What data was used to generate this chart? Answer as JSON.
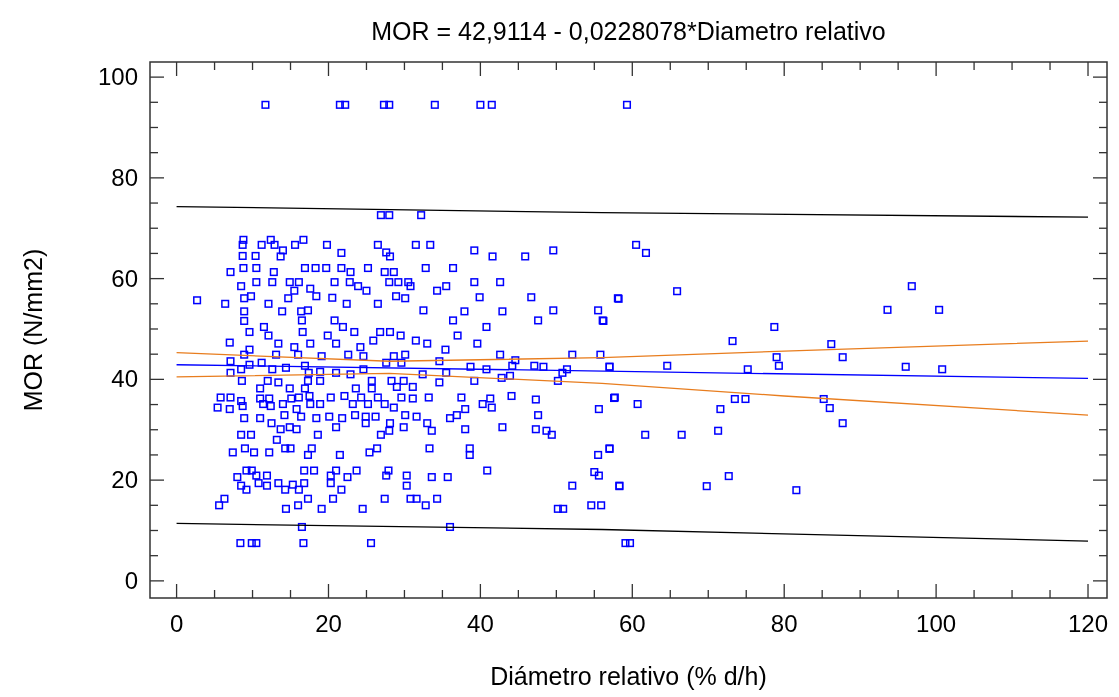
{
  "chart_data": {
    "type": "scatter",
    "title": "MOR = 42,9114 - 0,0228078*Diametro relativo",
    "xlabel": "Diámetro relativo (% d/h)",
    "ylabel": "MOR (N/mm2)",
    "xlim": [
      -3.5,
      122.5
    ],
    "ylim": [
      -3.4,
      103
    ],
    "xticks": [
      0,
      {
        "value": 5,
        "label": null
      },
      {
        "value": 10,
        "label": null
      },
      {
        "value": 15,
        "label": null
      },
      20,
      {
        "value": 25,
        "label": null
      },
      {
        "value": 30,
        "label": null
      },
      {
        "value": 35,
        "label": null
      },
      40,
      {
        "value": 45,
        "label": null
      },
      {
        "value": 50,
        "label": null
      },
      {
        "value": 55,
        "label": null
      },
      60,
      {
        "value": 65,
        "label": null
      },
      {
        "value": 70,
        "label": null
      },
      {
        "value": 75,
        "label": null
      },
      80,
      {
        "value": 85,
        "label": null
      },
      {
        "value": 90,
        "label": null
      },
      {
        "value": 95,
        "label": null
      },
      100,
      {
        "value": 105,
        "label": null
      },
      {
        "value": 110,
        "label": null
      },
      {
        "value": 115,
        "label": null
      },
      120
    ],
    "yticks": [
      0,
      {
        "value": 5,
        "label": null
      },
      {
        "value": 10,
        "label": null
      },
      {
        "value": 15,
        "label": null
      },
      20,
      {
        "value": 25,
        "label": null
      },
      {
        "value": 30,
        "label": null
      },
      {
        "value": 35,
        "label": null
      },
      40,
      {
        "value": 45,
        "label": null
      },
      {
        "value": 50,
        "label": null
      },
      {
        "value": 55,
        "label": null
      },
      60,
      {
        "value": 65,
        "label": null
      },
      {
        "value": 70,
        "label": null
      },
      {
        "value": 75,
        "label": null
      },
      80,
      {
        "value": 85,
        "label": null
      },
      {
        "value": 90,
        "label": null
      },
      {
        "value": 95,
        "label": null
      },
      100
    ],
    "grid": false,
    "series": [
      {
        "marker": "square",
        "color": "#0000ff",
        "x": [
          11.7,
          21.5,
          22.2,
          27.3,
          28,
          34,
          40,
          41.5,
          59.3,
          26.9,
          28,
          32.2,
          8.4,
          9.9,
          10.5,
          16.7,
          25.6,
          59.1,
          59.7,
          16.5,
          36,
          60.5,
          61.8,
          58.2,
          65.9,
          56.2,
          78.7,
          96.8,
          93.6,
          100.4,
          73.2,
          86.2,
          79,
          87.7,
          57,
          64.6,
          79.3,
          96,
          100.8,
          75.2,
          57.6,
          60.7,
          73.5,
          74.9,
          85.2,
          86,
          71.6,
          87.7,
          61.7,
          66.5,
          71.3,
          57,
          72.7,
          69.8,
          81.6,
          58.3,
          2.7,
          6.4,
          7.1,
          8.8,
          8.7,
          8.7,
          8.8,
          8.5,
          8.9,
          8.9,
          8.9,
          12.4,
          11.2,
          12.9,
          16.7,
          15.6,
          14.0,
          10.4,
          13.7,
          10.5,
          12.8,
          10.5,
          12.6,
          14.9,
          16.1,
          16.9,
          18.3,
          19.8,
          21.7,
          19.7,
          21.7,
          22.9,
          20.8,
          22.8,
          17.6,
          18.4,
          15.5,
          14.7,
          9.8,
          12.1,
          13.9,
          16.4,
          17.3,
          20.5,
          22.4,
          23.9,
          25.0,
          25.2,
          26.5,
          27.6,
          28.1,
          27.4,
          28.6,
          28.0,
          29.2,
          30.5,
          30.8,
          28.9,
          30.1,
          31.5,
          33.4,
          32.8,
          36.4,
          34.3,
          35.5,
          39.2,
          41.6,
          45.9,
          49.6,
          39.2,
          42.6,
          39.9,
          46.7,
          32.5,
          37.9,
          42.9,
          49.6,
          36.4,
          47.6,
          55.5,
          56.1,
          58.1,
          26.5,
          20.8,
          16.5,
          11.5,
          9.6,
          12.1,
          16.6,
          19.9,
          21.9,
          23.4,
          26.8,
          28.1,
          29.5,
          31.5,
          37.0,
          39.6,
          40.8,
          7.0,
          9.6,
          13.4,
          15.5,
          17.6,
          21.0,
          24.2,
          25.9,
          33.0,
          35.4,
          8.9,
          13.1,
          16.0,
          19.1,
          22.6,
          24.6,
          28.6,
          30.1,
          42.6,
          52.1,
          55.8,
          7.1,
          7.1,
          8.5,
          9.6,
          11.2,
          12.6,
          14.4,
          16.9,
          17.4,
          18.9,
          21.0,
          22.9,
          24.6,
          27.6,
          29.6,
          32.4,
          34.6,
          35.5,
          38.7,
          40.8,
          44.2,
          47.1,
          48.3,
          51.4,
          57.0,
          44.6,
          50.8,
          42.8,
          43.9,
          8.6,
          12.0,
          13.4,
          17.3,
          18.9,
          25.7,
          28.3,
          29.9,
          34.6,
          39.2,
          50.2,
          11.0,
          14.9,
          16.9,
          23.6,
          25.7,
          29.0,
          31.1,
          5.8,
          7.1,
          5.4,
          7.0,
          8.5,
          11.0,
          12.2,
          15.1,
          16.1,
          17.5,
          20.3,
          22.1,
          24.3,
          26.5,
          29.6,
          31.1,
          33.2,
          37.5,
          41.3,
          44.1,
          47.3,
          57.7,
          8.7,
          11.4,
          12.4,
          14.0,
          15.8,
          17.6,
          18.9,
          23.2,
          25.2,
          27.4,
          28.6,
          38.0,
          40.3,
          41.5,
          55.6,
          8.9,
          11.0,
          12.5,
          14.2,
          16.4,
          18.4,
          20.1,
          21.8,
          23.5,
          24.9,
          26.2,
          28.1,
          30.1,
          31.6,
          33.0,
          36.0,
          36.9,
          47.6,
          13.7,
          14.9,
          15.8,
          18.6,
          21.0,
          24.9,
          26.9,
          28.0,
          29.9,
          33.6,
          38.0,
          42.9,
          47.3,
          48.7,
          49.4,
          8.5,
          9.8,
          13.2,
          7.4,
          9.0,
          10.2,
          12.2,
          14.3,
          15.0,
          17.3,
          17.8,
          21.5,
          25.4,
          26.4,
          33.3,
          38.6,
          38.6,
          55.5,
          57.0,
          8.0,
          9.2,
          9.9,
          8.5,
          9.2,
          10.5,
          11.9,
          10.8,
          11.9,
          13.4,
          14.3,
          15.3,
          16.1,
          16.8,
          16.8,
          18.1,
          20.3,
          21.0,
          20.3,
          21.7,
          22.5,
          23.7,
          27.6,
          27.9,
          30.3,
          30.3,
          33.6,
          35.7,
          40.9,
          52.1,
          55.0,
          55.6,
          58.3,
          6.3,
          5.6,
          14.4,
          16.0,
          17.3,
          19.1,
          20.6,
          24.5,
          27.4,
          30.8,
          31.6,
          32.8,
          34.3,
          50.2,
          50.9,
          54.6,
          55.9
        ],
        "values": [
          94.5,
          94.5,
          94.5,
          94.5,
          94.5,
          94.5,
          94.5,
          94.5,
          94.5,
          72.6,
          72.6,
          72.6,
          7.5,
          7.5,
          7.5,
          7.5,
          7.5,
          7.5,
          7.5,
          10.7,
          10.7,
          66.7,
          65.1,
          56,
          57.5,
          51.6,
          50.4,
          58.5,
          53.8,
          53.8,
          47.6,
          47,
          44.4,
          44.4,
          42.5,
          42.7,
          42.7,
          42.5,
          42,
          42,
          36.3,
          35.1,
          36.1,
          36.1,
          36.1,
          34.3,
          34.1,
          31.3,
          29,
          29,
          29.8,
          26.2,
          20.8,
          18.8,
          18,
          18.8,
          55.7,
          55.0,
          61.3,
          67.7,
          66.7,
          64.5,
          62.1,
          58.5,
          56.1,
          53.5,
          51.6,
          67.7,
          66.7,
          66.7,
          67.7,
          66.7,
          65.6,
          64.5,
          64.4,
          62.1,
          61.3,
          59.3,
          59.3,
          59.3,
          59.3,
          62.1,
          62.1,
          66.7,
          65.1,
          62.1,
          62.1,
          61.3,
          59.3,
          59.3,
          58.0,
          56.5,
          57.6,
          56.1,
          56.5,
          55.0,
          53.5,
          53.5,
          53.7,
          56.2,
          55.0,
          58.5,
          57.6,
          62.1,
          66.7,
          65.2,
          64.4,
          61.3,
          61.3,
          59.3,
          59.3,
          59.3,
          58.5,
          56.5,
          56.1,
          66.7,
          66.7,
          62.1,
          62.1,
          57.6,
          58.5,
          65.6,
          64.4,
          64.4,
          65.6,
          59.3,
          59.3,
          56.3,
          56.3,
          53.7,
          53.5,
          53.5,
          53.7,
          51.7,
          51.7,
          53.7,
          51.7,
          56.1,
          55.0,
          51.7,
          51.7,
          50.4,
          49.4,
          48.7,
          49.4,
          48.7,
          50.4,
          49.4,
          49.4,
          49.4,
          48.7,
          47.7,
          48.7,
          47.1,
          50.4,
          47.3,
          45.9,
          47.1,
          46.4,
          47.1,
          47.1,
          46.4,
          47.7,
          47.1,
          45.9,
          44.9,
          44.9,
          44.9,
          44.6,
          44.9,
          44.6,
          44.6,
          44.9,
          44.9,
          44.9,
          44.9,
          43.6,
          41.3,
          42.0,
          42.9,
          43.3,
          42.0,
          42.3,
          42.7,
          41.3,
          41.5,
          41.3,
          41.0,
          42.0,
          43.3,
          43.3,
          41.0,
          43.6,
          41.3,
          42.5,
          42.0,
          42.7,
          42.7,
          42.5,
          42.0,
          42.5,
          43.8,
          41.3,
          40.3,
          40.7,
          39.7,
          39.7,
          39.4,
          39.7,
          39.7,
          39.7,
          39.7,
          39.7,
          39.4,
          39.7,
          39.7,
          38.2,
          38.2,
          38.2,
          38.2,
          38.2,
          38.5,
          38.5,
          36.4,
          36.4,
          34.4,
          34.1,
          35.7,
          36.2,
          36.2,
          36.2,
          36.4,
          36.7,
          36.4,
          36.7,
          36.4,
          36.4,
          36.4,
          36.2,
          36.4,
          36.4,
          36.2,
          36.7,
          36.0,
          36.4,
          34.7,
          35.1,
          34.7,
          35.1,
          34.1,
          35.1,
          35.1,
          35.1,
          35.1,
          35.1,
          34.4,
          34.1,
          35.1,
          34.4,
          34.1,
          32.3,
          32.3,
          31.3,
          32.9,
          32.6,
          32.3,
          32.6,
          32.3,
          32.9,
          32.6,
          32.6,
          31.3,
          32.9,
          32.6,
          31.3,
          32.3,
          32.9,
          32.9,
          30.1,
          30.5,
          30.1,
          29.0,
          30.5,
          31.3,
          29.0,
          29.8,
          30.5,
          29.8,
          30.1,
          30.5,
          30.1,
          29.8,
          29.0,
          29.0,
          29.0,
          28.0,
          25.5,
          26.3,
          25.5,
          25.5,
          26.3,
          26.3,
          25.0,
          26.3,
          25.0,
          25.5,
          26.3,
          26.3,
          25.0,
          26.3,
          25.0,
          26.3,
          20.6,
          21.9,
          21.9,
          18.9,
          18.1,
          20.9,
          20.9,
          19.4,
          18.9,
          19.4,
          18.1,
          19.1,
          18.1,
          19.4,
          21.9,
          21.9,
          20.9,
          21.9,
          19.4,
          18.1,
          20.6,
          21.9,
          20.9,
          21.9,
          20.9,
          18.9,
          20.6,
          20.6,
          21.9,
          18.9,
          21.6,
          20.9,
          18.9,
          16.3,
          15.0,
          14.3,
          15.0,
          16.3,
          14.3,
          16.3,
          14.3,
          16.3,
          16.3,
          16.3,
          15.0,
          16.3,
          14.3,
          14.3,
          15.0,
          15.0
        ]
      },
      {
        "type": "line",
        "marker": "none",
        "color": "#0000ff",
        "x": [
          0,
          120
        ],
        "values": [
          42.9,
          40.2
        ]
      },
      {
        "type": "line",
        "marker": "none",
        "color": "#e87d1e",
        "x": [
          0,
          28,
          56,
          80,
          120
        ],
        "values": [
          45.3,
          43.6,
          44.3,
          45.6,
          47.6
        ]
      },
      {
        "type": "line",
        "marker": "none",
        "color": "#e87d1e",
        "x": [
          0,
          28,
          56,
          80,
          120
        ],
        "values": [
          40.5,
          41.2,
          39.2,
          36.7,
          32.9
        ]
      },
      {
        "type": "line",
        "marker": "none",
        "color": "#000000",
        "x": [
          0,
          56,
          120
        ],
        "values": [
          74.3,
          73.1,
          72.2
        ]
      },
      {
        "type": "line",
        "marker": "none",
        "color": "#000000",
        "x": [
          0,
          56,
          120
        ],
        "values": [
          11.4,
          10.2,
          7.9
        ]
      }
    ]
  }
}
